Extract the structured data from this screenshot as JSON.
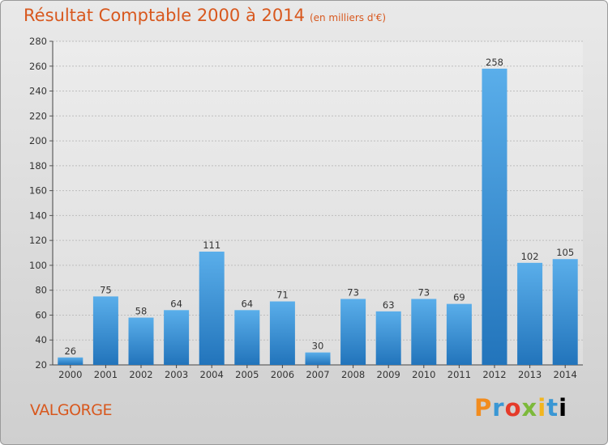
{
  "title": "Résultat Comptable 2000 à 2014",
  "subtitle": "(en milliers d'€)",
  "commune": "VALGORGE",
  "logo_text": "Proxiti",
  "colors": {
    "accent": "#d8581e",
    "bar": "#4a9fe0",
    "bar_dark": "#2478c0"
  },
  "chart_data": {
    "type": "bar",
    "title": "Résultat Comptable 2000 à 2014",
    "subtitle": "(en milliers d'€)",
    "xlabel": "",
    "ylabel": "",
    "categories": [
      "2000",
      "2001",
      "2002",
      "2003",
      "2004",
      "2005",
      "2006",
      "2007",
      "2008",
      "2009",
      "2010",
      "2011",
      "2012",
      "2013",
      "2014"
    ],
    "values": [
      26,
      75,
      58,
      64,
      111,
      64,
      71,
      30,
      73,
      63,
      73,
      69,
      258,
      102,
      105
    ],
    "ylim": [
      20,
      280
    ],
    "yticks": [
      20,
      40,
      60,
      80,
      100,
      120,
      140,
      160,
      180,
      200,
      220,
      240,
      260,
      280
    ],
    "grid": true,
    "data_labels": true
  }
}
